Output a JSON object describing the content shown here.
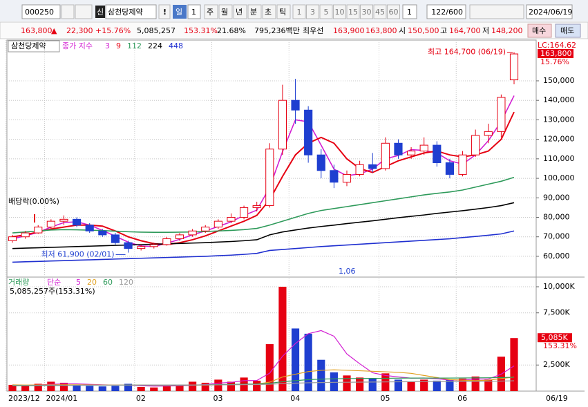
{
  "toolbar": {
    "code": "000250",
    "tag": "신",
    "name": "삼천당제약",
    "alert": "!",
    "period": "일",
    "period_n": "1",
    "units": [
      "주",
      "월",
      "년",
      "분",
      "초",
      "틱"
    ],
    "minutes": [
      "1",
      "3",
      "5",
      "10",
      "15",
      "30",
      "45",
      "60"
    ],
    "count": "1",
    "range": "122/600",
    "date": "2024/06/19"
  },
  "quote": {
    "price": "163,800",
    "arrow": "▲",
    "change": "22,300",
    "change_pct": "+15.76%",
    "volume": "5,085,257",
    "volume_ratio": "153.31%",
    "turnover": "21.68%",
    "amount": "795,236백만",
    "best_label": "최우선",
    "ask": "163,900",
    "bid": "163,800",
    "open_label": "시",
    "open": "150,500",
    "high_label": "고",
    "high": "164,700",
    "low_label": "저",
    "low": "148,200",
    "buy": "매수",
    "sell": "매도"
  },
  "chart_data": [
    {
      "type": "candlestick",
      "title": "삼천당제약",
      "legend_label": "종가 지수",
      "categories": [
        "2023/12",
        null,
        null,
        "2024/01",
        null,
        null,
        null,
        null,
        null,
        null,
        "02",
        null,
        null,
        null,
        null,
        null,
        "03",
        null,
        null,
        null,
        null,
        null,
        "04",
        null,
        null,
        null,
        null,
        null,
        null,
        "05",
        null,
        null,
        null,
        null,
        null,
        "06",
        null,
        null,
        null,
        null
      ],
      "open": [
        68000,
        70000,
        72000,
        75000,
        78000,
        79000,
        76000,
        73000,
        71000,
        67000,
        64000,
        65000,
        66000,
        69000,
        71000,
        73000,
        75000,
        78000,
        80000,
        85000,
        86000,
        115000,
        140000,
        135000,
        112000,
        104000,
        98000,
        102000,
        107000,
        105000,
        118000,
        112000,
        114000,
        117000,
        108000,
        102000,
        112000,
        122000,
        124000,
        150500
      ],
      "high": [
        71000,
        73000,
        76000,
        79000,
        81000,
        80000,
        77000,
        74000,
        72000,
        68000,
        66000,
        67000,
        70000,
        72000,
        74000,
        76000,
        79000,
        82000,
        86000,
        88000,
        118000,
        148000,
        151000,
        137000,
        115000,
        107000,
        104000,
        109000,
        113000,
        121000,
        120000,
        116000,
        121000,
        119000,
        110000,
        114000,
        125000,
        128000,
        143000,
        164700
      ],
      "low": [
        67000,
        69000,
        71500,
        74000,
        76000,
        75000,
        72000,
        70000,
        66000,
        61900,
        63000,
        64000,
        65500,
        68000,
        70000,
        72000,
        74000,
        77000,
        79000,
        83000,
        85000,
        112000,
        128000,
        108000,
        100000,
        95000,
        96000,
        101000,
        103000,
        104000,
        110000,
        110000,
        112000,
        106000,
        100000,
        101000,
        111000,
        118000,
        121000,
        148200
      ],
      "close": [
        70000,
        72000,
        75000,
        78000,
        79000,
        76000,
        73000,
        71000,
        67000,
        64000,
        65000,
        66000,
        69000,
        71000,
        73000,
        75000,
        78000,
        80000,
        85000,
        86000,
        115000,
        140000,
        135000,
        112000,
        104000,
        98000,
        102000,
        107000,
        105000,
        118000,
        112000,
        114000,
        117000,
        108000,
        102000,
        112000,
        122000,
        124000,
        141500,
        163800
      ],
      "colors": {
        "up": "#e60012",
        "down": "#1f3fd0"
      },
      "series": [
        {
          "name": "3",
          "color": "#d21ed2",
          "values": [
            69000,
            70500,
            72300,
            75000,
            77300,
            77700,
            76000,
            73300,
            70300,
            67300,
            65300,
            65000,
            66700,
            68700,
            71000,
            73000,
            75300,
            77700,
            81000,
            83700,
            95300,
            113700,
            130000,
            129000,
            117000,
            104700,
            101300,
            102300,
            104700,
            110000,
            111700,
            114700,
            114300,
            113000,
            109000,
            107300,
            112000,
            119300,
            129200,
            142400
          ]
        },
        {
          "name": "9",
          "color": "#e60012",
          "values": [
            70000,
            71000,
            72500,
            74000,
            75000,
            76000,
            76000,
            75500,
            73000,
            70000,
            68000,
            66500,
            66000,
            67000,
            68500,
            70500,
            73000,
            75500,
            78000,
            81000,
            89000,
            101000,
            112000,
            118000,
            121000,
            118000,
            110000,
            105000,
            103000,
            106000,
            109000,
            111000,
            113000,
            114000,
            112000,
            111000,
            112000,
            114000,
            120000,
            134000
          ]
        },
        {
          "name": "112",
          "color": "#2e9a5a",
          "values": [
            72000,
            72500,
            73000,
            73500,
            73700,
            73600,
            73400,
            73200,
            72900,
            72600,
            72400,
            72300,
            72300,
            72400,
            72500,
            72700,
            73000,
            73300,
            73700,
            74300,
            76000,
            78000,
            80000,
            82000,
            83500,
            84500,
            85500,
            86500,
            87500,
            88500,
            89500,
            90500,
            91500,
            92300,
            93000,
            94000,
            95500,
            97000,
            98500,
            100500
          ]
        },
        {
          "name": "224",
          "color": "#000000",
          "values": [
            64000,
            64200,
            64400,
            64600,
            64800,
            65000,
            65200,
            65400,
            65600,
            65800,
            66000,
            66200,
            66400,
            66600,
            66800,
            67000,
            67300,
            67600,
            68000,
            68500,
            71000,
            72500,
            73500,
            74500,
            75300,
            76000,
            76800,
            77500,
            78200,
            79000,
            79800,
            80500,
            81200,
            82000,
            82700,
            83400,
            84200,
            85000,
            86000,
            87500
          ]
        },
        {
          "name": "448",
          "color": "#1f2fd0",
          "values": [
            57000,
            57200,
            57400,
            57600,
            57800,
            58000,
            58200,
            58400,
            58600,
            58800,
            59000,
            59200,
            59400,
            59600,
            59800,
            60000,
            60300,
            60600,
            61000,
            61500,
            63000,
            63500,
            64000,
            64500,
            65000,
            65400,
            65800,
            66200,
            66600,
            67000,
            67400,
            67800,
            68200,
            68600,
            69000,
            69600,
            70200,
            70800,
            71500,
            73000
          ]
        }
      ],
      "ylim": [
        49700,
        170900
      ],
      "yticks": [
        {
          "value": 60000,
          "label": "60,000"
        },
        {
          "value": 70000,
          "label": "70,000"
        },
        {
          "value": 80000,
          "label": "80,000"
        },
        {
          "value": 90000,
          "label": "90,000"
        },
        {
          "value": 100000,
          "label": "100,000"
        },
        {
          "value": 110000,
          "label": "110,000"
        },
        {
          "value": 120000,
          "label": "120,000"
        },
        {
          "value": 130000,
          "label": "130,000"
        },
        {
          "value": 140000,
          "label": "140,000"
        },
        {
          "value": 150000,
          "label": "150,000"
        }
      ],
      "grid": true,
      "high_label": "최고 164,700 (06/19)",
      "low_label": "최저 61,900 (02/01)",
      "dividend_label": "배당락(0.00%)",
      "misc_label": "1,06",
      "lc_label": "LC:164.62",
      "last_price_label": "163,800",
      "last_change_label": "15.76%",
      "x_end_label": "06/19"
    },
    {
      "type": "bar",
      "title": "거래량",
      "legend_label": "단순",
      "values": [
        600,
        500,
        700,
        900,
        800,
        600,
        500,
        450,
        500,
        700,
        400,
        350,
        500,
        600,
        900,
        800,
        1100,
        900,
        1300,
        1000,
        4500,
        10000,
        6000,
        5500,
        3000,
        1800,
        1500,
        1300,
        1200,
        1700,
        1100,
        900,
        1100,
        1000,
        1100,
        1200,
        1400,
        1100,
        3300,
        5085.257
      ],
      "series": [
        {
          "name": "5",
          "color": "#d21ed2",
          "values": [
            600,
            550,
            600,
            650,
            700,
            700,
            650,
            610,
            570,
            570,
            510,
            480,
            490,
            510,
            550,
            630,
            760,
            840,
            1000,
            1020,
            1720,
            3340,
            4560,
            5500,
            5800,
            5260,
            3560,
            2620,
            1760,
            1500,
            1360,
            1240,
            1260,
            1180,
            1060,
            1060,
            1160,
            1160,
            1620,
            2420
          ]
        },
        {
          "name": "20",
          "color": "#e0a020",
          "values": [
            600,
            580,
            590,
            600,
            610,
            610,
            600,
            590,
            580,
            580,
            570,
            560,
            555,
            560,
            570,
            580,
            600,
            620,
            650,
            670,
            860,
            1350,
            1620,
            1870,
            1990,
            2040,
            2000,
            1950,
            1900,
            1850,
            1800,
            1700,
            1500,
            1300,
            1100,
            1050,
            1000,
            1050,
            1200,
            1350
          ]
        },
        {
          "name": "60",
          "color": "#2e9a5a",
          "values": [
            500,
            510,
            520,
            530,
            540,
            550,
            560,
            560,
            560,
            570,
            570,
            570,
            570,
            580,
            590,
            600,
            620,
            640,
            660,
            680,
            750,
            900,
            1000,
            1100,
            1150,
            1180,
            1200,
            1210,
            1220,
            1230,
            1240,
            1250,
            1250,
            1250,
            1250,
            1260,
            1270,
            1280,
            1300,
            1330
          ]
        },
        {
          "name": "120",
          "color": "#9a9a9a",
          "values": [
            550,
            550,
            555,
            560,
            560,
            565,
            565,
            570,
            570,
            575,
            575,
            580,
            580,
            585,
            590,
            595,
            600,
            610,
            620,
            630,
            660,
            720,
            760,
            800,
            820,
            840,
            850,
            860,
            870,
            880,
            890,
            900,
            905,
            910,
            915,
            920,
            930,
            940,
            960,
            990
          ]
        }
      ],
      "ylim": [
        0,
        10860
      ],
      "yticks": [
        {
          "value": 2500,
          "label": "2,500K"
        },
        {
          "value": 7500,
          "label": "7,500K"
        },
        {
          "value": 10000,
          "label": "10,000K"
        }
      ],
      "grid": true,
      "info_label": "5,085,257주(153.31%)",
      "last_value_label": "5,085K",
      "last_ratio_label": "153.31%"
    }
  ]
}
